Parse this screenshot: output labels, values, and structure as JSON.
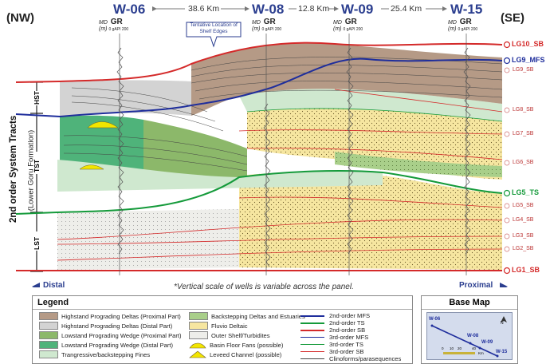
{
  "header": {
    "nw": "(NW)",
    "se": "(SE)",
    "wells": [
      "W-06",
      "W-08",
      "W-09",
      "W-15"
    ],
    "distances": [
      "38.6 Km",
      "12.8 Km",
      "25.4 Km"
    ],
    "md_label": "MD",
    "md_unit": "(m)",
    "gr_label": "GR",
    "gr_scale": "0 gAPI 200"
  },
  "callout": "Tentative Location of Shelf Edges",
  "y_axis": {
    "title": "2nd order System Tracts",
    "subtitle": "(Lower Goru Formation)",
    "tracts": [
      "HST",
      "TST",
      "LST"
    ]
  },
  "surfaces_main": [
    {
      "name": "LG10_SB",
      "color": "#d42a2a"
    },
    {
      "name": "LG9_MFS",
      "color": "#1f2e9c"
    },
    {
      "name": "LG5_TS",
      "color": "#149a3a"
    },
    {
      "name": "LG1_SB",
      "color": "#d42a2a"
    }
  ],
  "surfaces_sub": [
    "LG9_SB",
    "LG8_SB",
    "LG7_SB",
    "LG6_SB",
    "LG5_SB",
    "LG4_SB",
    "LG3_SB",
    "LG2_SB"
  ],
  "bottom": {
    "distal": "Distal",
    "proximal": "Proximal",
    "note": "*Vertical scale of wells is variable across the panel."
  },
  "legend": {
    "title": "Legend",
    "facies": [
      {
        "label": "Highstand Prograding Deltas (Proximal Part)",
        "color": "#b59a86"
      },
      {
        "label": "Highstand Prograding Deltas (Distal Part)",
        "color": "#d3d3d3"
      },
      {
        "label": "Lowstand Prograding Wedge (Proximal Part)",
        "color": "#8cb86a"
      },
      {
        "label": "Lowstand Prograding Wedge (Distal Part)",
        "color": "#4fb37a"
      },
      {
        "label": "Trangressive/backstepping Fines",
        "color": "#cfe8cf"
      },
      {
        "label": "Backstepping Deltas and Estuaries",
        "color": "#a9cf8a"
      },
      {
        "label": "Fluvio Deltaic",
        "color": "#f6e6a0"
      },
      {
        "label": "Outer Shelf/Turbidites",
        "color": "#eeeeea"
      },
      {
        "label": "Basin Floor Fans (possible)",
        "color": "#f2e500"
      },
      {
        "label": "Leveed Channel (possible)",
        "color": "#f2e500"
      }
    ],
    "lines": [
      {
        "label": "2nd-order MFS",
        "color": "#1f2e9c",
        "width": 2.2
      },
      {
        "label": "2nd-order TS",
        "color": "#149a3a",
        "width": 2.2
      },
      {
        "label": "2nd-order SB",
        "color": "#d42a2a",
        "width": 2.2
      },
      {
        "label": "3rd-order MFS",
        "color": "#1f2e9c",
        "width": 1
      },
      {
        "label": "3rd-order TS",
        "color": "#149a3a",
        "width": 1
      },
      {
        "label": "3rd-order SB",
        "color": "#d42a2a",
        "width": 1
      },
      {
        "label": "Clinoforms/parasequences",
        "color": "#444444",
        "width": 0.8
      }
    ]
  },
  "basemap": {
    "title": "Base Map",
    "north": "N",
    "wells": [
      "W-06",
      "W-08",
      "W-09",
      "W-15"
    ],
    "scale_ticks": [
      "0",
      "10",
      "20",
      "40"
    ],
    "scale_unit": "Km"
  }
}
